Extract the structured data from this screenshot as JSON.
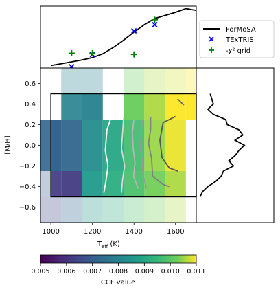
{
  "chart_data": [
    {
      "panel": "top",
      "type": "line+scatter",
      "x_range": [
        950,
        1700
      ],
      "y_range": [
        0,
        1
      ],
      "series": [
        {
          "name": "ForMoSA",
          "kind": "line",
          "color": "#000000",
          "x": [
            1000,
            1050,
            1100,
            1150,
            1200,
            1250,
            1300,
            1350,
            1400,
            1450,
            1500,
            1550,
            1600,
            1650,
            1700
          ],
          "y": [
            0.04,
            0.07,
            0.1,
            0.13,
            0.17,
            0.23,
            0.33,
            0.45,
            0.58,
            0.7,
            0.8,
            0.85,
            0.9,
            0.96,
            0.93
          ]
        },
        {
          "name": "TExTRIS",
          "kind": "scatter",
          "marker": "x",
          "color": "#0000ff",
          "x": [
            1100,
            1200,
            1400,
            1500
          ],
          "y": [
            0.02,
            0.22,
            0.6,
            0.7
          ]
        },
        {
          "name": "-χ² grid",
          "kind": "scatter",
          "marker": "+",
          "color": "#008000",
          "x": [
            1100,
            1200,
            1400,
            1500
          ],
          "y": [
            0.24,
            0.24,
            0.22,
            0.78
          ]
        }
      ]
    },
    {
      "panel": "main",
      "type": "heatmap",
      "xlabel_main": "T",
      "xlabel_sub": "eff",
      "xlabel_unit": " (K)",
      "ylabel": "[M/H]",
      "x_range": [
        950,
        1700
      ],
      "y_range": [
        -0.75,
        0.75
      ],
      "xticks": [
        "1000",
        "1200",
        "1400",
        "1600"
      ],
      "xtick_values": [
        1000,
        1200,
        1400,
        1600
      ],
      "yticks": [
        "−0.6",
        "−0.4",
        "−0.2",
        "0.0",
        "0.2",
        "0.4",
        "0.6"
      ],
      "ytick_values": [
        -0.6,
        -0.4,
        -0.2,
        0.0,
        0.2,
        0.4,
        0.6
      ],
      "cells": [
        {
          "x": [
            950,
            1050
          ],
          "y": [
            -0.75,
            -0.5
          ],
          "v": 0.0065,
          "a": 0.3
        },
        {
          "x": [
            950,
            1050
          ],
          "y": [
            -0.5,
            -0.25
          ],
          "v": 0.007,
          "a": 0.3
        },
        {
          "x": [
            950,
            1050
          ],
          "y": [
            -0.25,
            0.25
          ],
          "v": 0.0072,
          "a": 0.9
        },
        {
          "x": [
            1000,
            1050
          ],
          "y": [
            -0.5,
            -0.25
          ],
          "v": 0.0062,
          "a": 0.9
        },
        {
          "x": [
            1000,
            1050
          ],
          "y": [
            -0.25,
            0.25
          ],
          "v": 0.0072,
          "a": 0.95
        },
        {
          "x": [
            1050,
            1150
          ],
          "y": [
            -0.75,
            -0.5
          ],
          "v": 0.0072,
          "a": 0.3
        },
        {
          "x": [
            1050,
            1150
          ],
          "y": [
            -0.5,
            -0.25
          ],
          "v": 0.0062,
          "a": 0.95
        },
        {
          "x": [
            1050,
            1150
          ],
          "y": [
            -0.25,
            0.25
          ],
          "v": 0.0072,
          "a": 0.95
        },
        {
          "x": [
            1050,
            1150
          ],
          "y": [
            0.25,
            0.5
          ],
          "v": 0.008,
          "a": 0.9
        },
        {
          "x": [
            1050,
            1150
          ],
          "y": [
            0.5,
            0.75
          ],
          "v": 0.008,
          "a": 0.3
        },
        {
          "x": [
            1150,
            1250
          ],
          "y": [
            -0.75,
            -0.5
          ],
          "v": 0.0085,
          "a": 0.3
        },
        {
          "x": [
            1150,
            1250
          ],
          "y": [
            -0.5,
            -0.25
          ],
          "v": 0.0087,
          "a": 0.95
        },
        {
          "x": [
            1150,
            1250
          ],
          "y": [
            -0.25,
            0.25
          ],
          "v": 0.0083,
          "a": 0.95
        },
        {
          "x": [
            1150,
            1250
          ],
          "y": [
            0.25,
            0.5
          ],
          "v": 0.008,
          "a": 0.95
        },
        {
          "x": [
            1150,
            1250
          ],
          "y": [
            0.5,
            0.75
          ],
          "v": 0.008,
          "a": 0.3
        },
        {
          "x": [
            1250,
            1350
          ],
          "y": [
            -0.75,
            -0.5
          ],
          "v": 0.0092,
          "a": 0.3
        },
        {
          "x": [
            1250,
            1350
          ],
          "y": [
            -0.5,
            -0.25
          ],
          "v": 0.0092,
          "a": 0.95
        },
        {
          "x": [
            1250,
            1350
          ],
          "y": [
            -0.25,
            0.25
          ],
          "v": 0.009,
          "a": 0.95
        },
        {
          "x": [
            1350,
            1450
          ],
          "y": [
            -0.75,
            -0.5
          ],
          "v": 0.0098,
          "a": 0.3
        },
        {
          "x": [
            1350,
            1450
          ],
          "y": [
            -0.5,
            -0.25
          ],
          "v": 0.0098,
          "a": 0.95
        },
        {
          "x": [
            1350,
            1450
          ],
          "y": [
            -0.25,
            0.25
          ],
          "v": 0.0097,
          "a": 0.95
        },
        {
          "x": [
            1350,
            1450
          ],
          "y": [
            0.25,
            0.5
          ],
          "v": 0.0102,
          "a": 0.95
        },
        {
          "x": [
            1350,
            1450
          ],
          "y": [
            0.5,
            0.75
          ],
          "v": 0.0102,
          "a": 0.3
        },
        {
          "x": [
            1450,
            1550
          ],
          "y": [
            -0.75,
            -0.5
          ],
          "v": 0.0103,
          "a": 0.3
        },
        {
          "x": [
            1450,
            1550
          ],
          "y": [
            -0.5,
            -0.25
          ],
          "v": 0.0103,
          "a": 0.95
        },
        {
          "x": [
            1450,
            1550
          ],
          "y": [
            -0.25,
            0.25
          ],
          "v": 0.0105,
          "a": 0.95
        },
        {
          "x": [
            1450,
            1550
          ],
          "y": [
            0.25,
            0.5
          ],
          "v": 0.0106,
          "a": 0.95
        },
        {
          "x": [
            1450,
            1550
          ],
          "y": [
            0.5,
            0.75
          ],
          "v": 0.0106,
          "a": 0.3
        },
        {
          "x": [
            1550,
            1650
          ],
          "y": [
            -0.75,
            -0.5
          ],
          "v": 0.0106,
          "a": 0.3
        },
        {
          "x": [
            1550,
            1650
          ],
          "y": [
            -0.5,
            -0.25
          ],
          "v": 0.0106,
          "a": 0.95
        },
        {
          "x": [
            1550,
            1650
          ],
          "y": [
            -0.25,
            0.25
          ],
          "v": 0.0109,
          "a": 0.95
        },
        {
          "x": [
            1550,
            1650
          ],
          "y": [
            0.25,
            0.5
          ],
          "v": 0.011,
          "a": 0.95
        },
        {
          "x": [
            1550,
            1650
          ],
          "y": [
            0.5,
            0.75
          ],
          "v": 0.0108,
          "a": 0.3
        },
        {
          "x": [
            1650,
            1700
          ],
          "y": [
            0.25,
            0.5
          ],
          "v": 0.011,
          "a": 0.95
        },
        {
          "x": [
            1650,
            1700
          ],
          "y": [
            0.5,
            0.75
          ],
          "v": 0.011,
          "a": 0.3
        }
      ],
      "box": {
        "x": [
          1000,
          1700
        ],
        "y": [
          -0.5,
          0.5
        ]
      },
      "contours": [
        {
          "color": "#ffffff",
          "w": 1.8,
          "pts": [
            [
              1290,
              0.27
            ],
            [
              1270,
              0.15
            ],
            [
              1262,
              -0.05
            ],
            [
              1275,
              -0.2
            ],
            [
              1265,
              -0.35
            ],
            [
              1255,
              -0.46
            ]
          ]
        },
        {
          "color": "#d8d8d8",
          "w": 1.8,
          "pts": [
            [
              1350,
              0.27
            ],
            [
              1345,
              0.12
            ],
            [
              1340,
              -0.03
            ],
            [
              1355,
              -0.2
            ],
            [
              1345,
              -0.33
            ],
            [
              1340,
              -0.46
            ]
          ]
        },
        {
          "color": "#b5b5b5",
          "w": 1.8,
          "pts": [
            [
              1400,
              0.25
            ],
            [
              1392,
              0.12
            ],
            [
              1396,
              -0.03
            ],
            [
              1405,
              -0.17
            ],
            [
              1398,
              -0.3
            ],
            [
              1420,
              -0.42
            ]
          ]
        },
        {
          "color": "#9a9a9a",
          "w": 1.8,
          "pts": [
            [
              1440,
              0.25
            ],
            [
              1435,
              0.12
            ],
            [
              1432,
              -0.03
            ],
            [
              1440,
              -0.17
            ],
            [
              1445,
              -0.3
            ],
            [
              1460,
              -0.42
            ]
          ]
        },
        {
          "color": "#7f7f7f",
          "w": 1.8,
          "pts": [
            [
              1480,
              0.27
            ],
            [
              1480,
              0.15
            ],
            [
              1470,
              0.02
            ],
            [
              1485,
              -0.13
            ],
            [
              1490,
              -0.3
            ],
            [
              1540,
              -0.38
            ],
            [
              1570,
              -0.4
            ]
          ]
        },
        {
          "color": "#555555",
          "w": 1.8,
          "pts": [
            [
              1600,
              0.28
            ],
            [
              1540,
              0.22
            ],
            [
              1525,
              0.05
            ],
            [
              1535,
              -0.12
            ],
            [
              1570,
              -0.22
            ],
            [
              1610,
              -0.25
            ]
          ]
        },
        {
          "color": "#666666",
          "w": 1.8,
          "pts": [
            [
              1610,
              0.45
            ],
            [
              1640,
              0.39
            ]
          ]
        }
      ]
    },
    {
      "panel": "right",
      "type": "line",
      "color": "#000000",
      "y": [
        0.5,
        0.45,
        0.4,
        0.35,
        0.3,
        0.25,
        0.2,
        0.15,
        0.1,
        0.05,
        0.0,
        -0.05,
        -0.1,
        -0.15,
        -0.2,
        -0.25,
        -0.3,
        -0.35,
        -0.4,
        -0.45,
        -0.5
      ],
      "x": [
        0.18,
        0.2,
        0.22,
        0.15,
        0.22,
        0.38,
        0.4,
        0.55,
        0.6,
        0.5,
        0.62,
        0.55,
        0.5,
        0.42,
        0.48,
        0.35,
        0.32,
        0.25,
        0.15,
        0.08,
        0.05
      ]
    },
    {
      "panel": "colorbar",
      "type": "colorbar",
      "label": "CCF value",
      "range": [
        0.005,
        0.011
      ],
      "ticks": [
        "0.005",
        "0.006",
        "0.007",
        "0.008",
        "0.009",
        "0.010",
        "0.011"
      ],
      "tick_values": [
        0.005,
        0.006,
        0.007,
        0.008,
        0.009,
        0.01,
        0.011
      ]
    }
  ]
}
